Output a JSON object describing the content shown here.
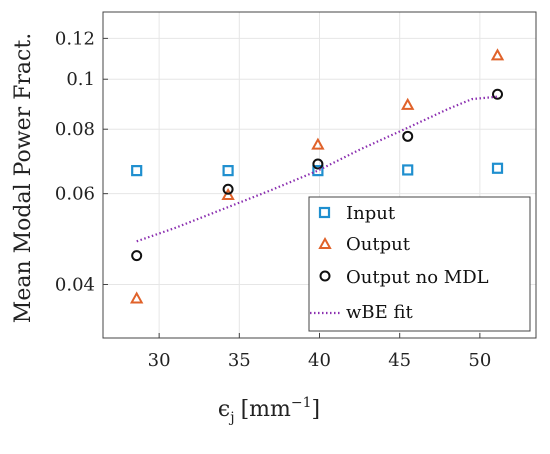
{
  "chart_data": {
    "type": "scatter",
    "xlabel_symbol": "ϵ",
    "xlabel_sub": "j",
    "xlabel_unit_open": "[mm",
    "xlabel_unit_exp": "−1",
    "xlabel_unit_close": "]",
    "ylabel": "Mean Modal Power Fract.",
    "y_scale": "log",
    "xlim": [
      26.5,
      53.5
    ],
    "ylim": [
      0.0315,
      0.135
    ],
    "x_ticks": [
      30,
      35,
      40,
      45,
      50
    ],
    "x_tick_labels": [
      "30",
      "35",
      "40",
      "45",
      "50"
    ],
    "y_ticks": [
      0.04,
      0.06,
      0.08,
      0.1,
      0.12
    ],
    "y_tick_labels": [
      "0.04",
      "0.06",
      "0.08",
      "0.1",
      "0.12"
    ],
    "grid": true,
    "legend_position": "bottom-right",
    "series": [
      {
        "name": "Input",
        "marker": "square",
        "color": "#1f8fcf",
        "points": [
          [
            28.6,
            0.0665
          ],
          [
            34.3,
            0.0665
          ],
          [
            39.9,
            0.0665
          ],
          [
            45.5,
            0.0667
          ],
          [
            51.1,
            0.0672
          ]
        ]
      },
      {
        "name": "Output",
        "marker": "triangle",
        "color": "#e0622a",
        "points": [
          [
            28.6,
            0.0375
          ],
          [
            34.3,
            0.0595
          ],
          [
            39.9,
            0.0745
          ],
          [
            45.5,
            0.089
          ],
          [
            51.1,
            0.111
          ]
        ]
      },
      {
        "name": "Output no MDL",
        "marker": "circle",
        "color": "#111111",
        "points": [
          [
            28.6,
            0.0455
          ],
          [
            34.3,
            0.0612
          ],
          [
            39.9,
            0.0685
          ],
          [
            45.5,
            0.0775
          ],
          [
            51.1,
            0.0935
          ]
        ]
      },
      {
        "name": "wBE fit",
        "marker": "dotted-line",
        "color": "#8b2fb0",
        "points": [
          [
            28.6,
            0.0485
          ],
          [
            31.0,
            0.0515
          ],
          [
            34.3,
            0.0565
          ],
          [
            37.0,
            0.061
          ],
          [
            39.9,
            0.0665
          ],
          [
            42.5,
            0.073
          ],
          [
            45.5,
            0.0805
          ],
          [
            48.0,
            0.0875
          ],
          [
            49.5,
            0.0915
          ],
          [
            51.1,
            0.0925
          ]
        ]
      }
    ]
  }
}
